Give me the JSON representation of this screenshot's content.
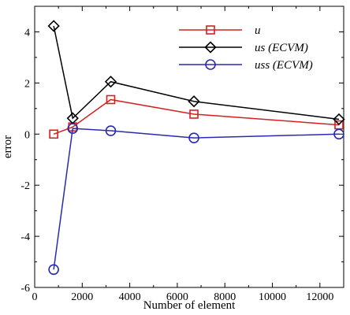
{
  "chart_data": {
    "type": "line",
    "title": "",
    "xlabel": "Number of element",
    "ylabel": "error",
    "xlim": [
      0,
      13000
    ],
    "ylim": [
      -6,
      5
    ],
    "xticks": [
      0,
      2000,
      4000,
      6000,
      8000,
      10000,
      12000
    ],
    "yticks": [
      -6,
      -4,
      -2,
      0,
      2,
      4
    ],
    "legend_position": "top-right",
    "grid": false,
    "series": [
      {
        "name": "u",
        "color": "#d42020",
        "marker": "square",
        "points": [
          [
            800,
            0.0
          ],
          [
            1600,
            0.28
          ],
          [
            3200,
            1.35
          ],
          [
            6700,
            0.78
          ],
          [
            12800,
            0.36
          ]
        ]
      },
      {
        "name": "us (ECVM)",
        "color": "#000000",
        "marker": "diamond",
        "points": [
          [
            800,
            4.23
          ],
          [
            1600,
            0.62
          ],
          [
            3200,
            2.05
          ],
          [
            6700,
            1.28
          ],
          [
            12800,
            0.58
          ]
        ]
      },
      {
        "name": "uss (ECVM)",
        "color": "#2a2ab0",
        "marker": "circle",
        "points": [
          [
            800,
            -5.3
          ],
          [
            1600,
            0.22
          ],
          [
            3200,
            0.13
          ],
          [
            6700,
            -0.15
          ],
          [
            12800,
            0.0
          ]
        ]
      }
    ]
  }
}
